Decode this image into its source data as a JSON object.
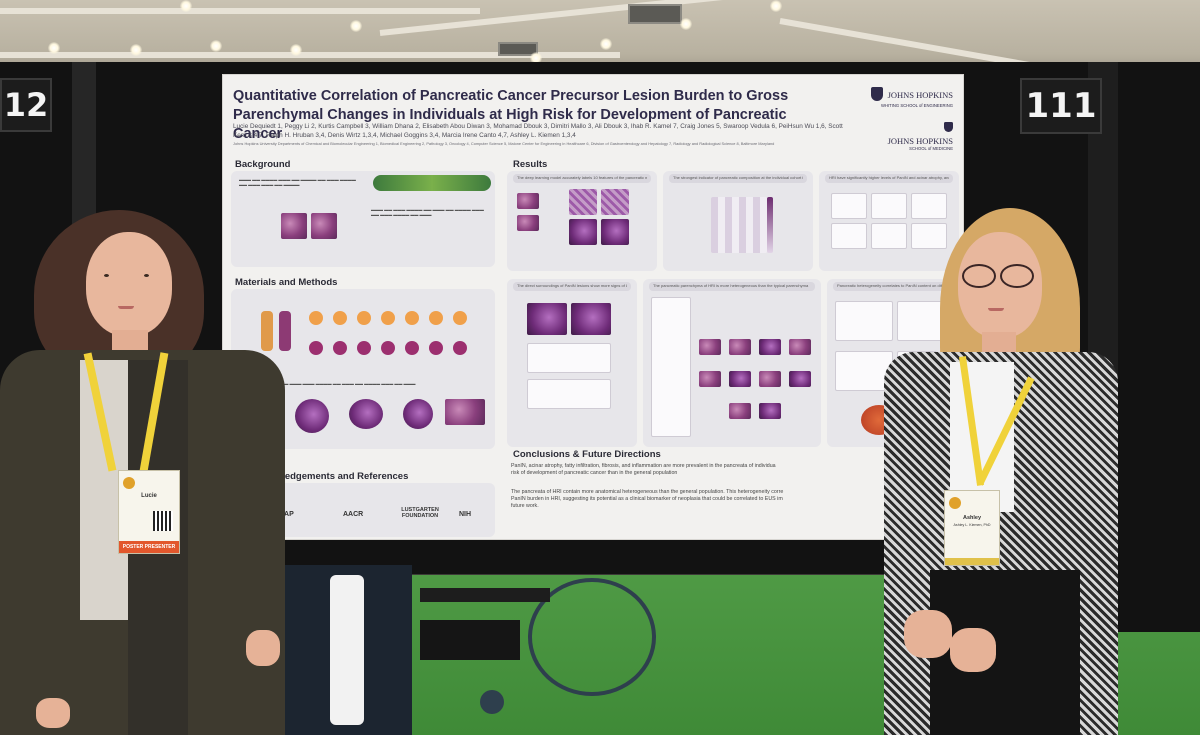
{
  "scene": {
    "description_tag": "conference poster session",
    "booth_left_number": "12",
    "booth_right_number": "111"
  },
  "poster": {
    "title": "Quantitative Correlation of Pancreatic Cancer Precursor Lesion Burden to Gross Parenchymal Changes in Individuals at High Risk for Development of Pancreatic Cancer",
    "authors": "Lucie Dequiedt 1, Peggy Li 2, Kurtis Campbell 3, William Dhana 2, Elisabeth Abou Diwan 3, Mohamad Dbouk 3, Dimitri Mallo 3, Ali Dbouk 3, Ihab R. Kamel 7, Craig Jones 5, Swaroop Vedula 6, PeiHsun Wu 1,6, Scott Kern 3,4,7, Ralph H. Hruban 3,4, Denis Wirtz 1,3,4, Michael Goggins 3,4, Marcia Irene Canto 4,7, Ashley L. Kiemen 1,3,4",
    "affiliation": "Johns Hopkins University Departments of Chemical and Biomolecular Engineering 1, Biomedical Engineering 2, Pathology 3, Oncology 4, Computer Science 5, Malone Center for Engineering in Healthcare 6, Division of Gastroenterology and Hepatology 7, Radiology and Radiological Science 8, Baltimore Maryland",
    "logo": {
      "name_top": "JOHNS HOPKINS",
      "sub_top": "WHITING SCHOOL of ENGINEERING",
      "name_bottom": "JOHNS HOPKINS",
      "sub_bottom": "SCHOOL of MEDICINE"
    },
    "sections": {
      "background": "Background",
      "materials": "Materials and Methods",
      "ack": "owledgements and References",
      "results": "Results",
      "conclusions": "Conclusions & Future Directions"
    },
    "result_captions": [
      "The deep learning model accurately labels 10 features of the pancreatic microanatomy",
      "The strongest indicator of pancreatic composition at the individual cohort is HRI status",
      "HRI have significantly higher levels of PanIN and acinar atrophy, and fibrosis than controls",
      "The direct surroundings of PanIN lesions show more signs of LCA in HRI than in controls",
      "The pancreatic parenchyma of HRI is more heterogeneous than the typical parenchyma",
      "Pancreatic heterogeneity correlates to PanIN content on different length scales"
    ],
    "conclusion_lines": [
      "PanIN, acinar atrophy, fatty infiltration, fibrosis, and inflammation are more prevalent in the pancreata of individua",
      "risk of development of pancreatic cancer than in the general population",
      "The pancreata of HRI contain more anatomical heterogeneous than the general population. This heterogeneity corre",
      "PanIN burden in HRI, suggesting its potential as a clinical biomarker of neoplasia that could be correlated to EUS im",
      "future work."
    ],
    "sponsors": [
      "CAP",
      "AACR",
      "LUSTGARTEN FOUNDATION",
      "NIH"
    ]
  },
  "people": {
    "left_badge_name": "Lucie",
    "left_badge_ribbon": "POSTER PRESENTER",
    "right_badge_name": "Ashley",
    "right_badge_sub": "Ashley L. Kiemen, PhD"
  },
  "colors": {
    "poster_bg": "#f2f1ef",
    "title_color": "#2f2b4a",
    "carpet": "#4f9a45",
    "booth": "#121212",
    "lanyard": "#f0d23a"
  }
}
